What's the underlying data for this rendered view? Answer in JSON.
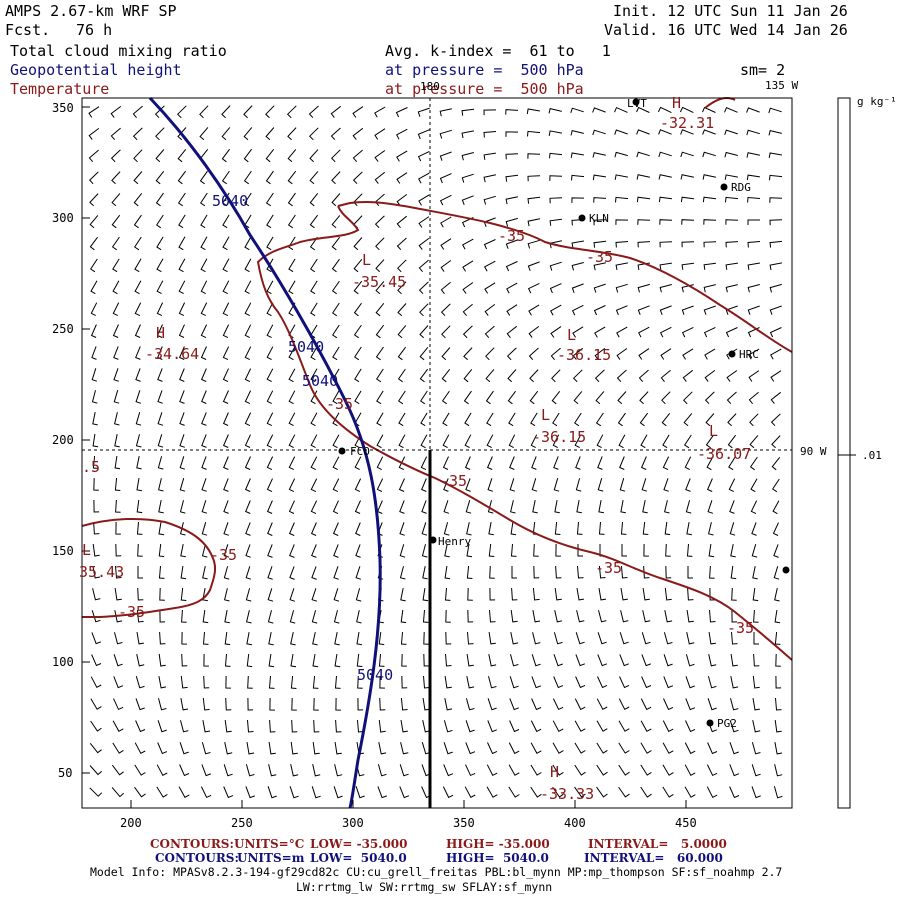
{
  "header": {
    "model": "AMPS 2.67-km WRF SP",
    "fcst_label": "Fcst.",
    "fcst_value": "76 h",
    "init": "Init. 12 UTC Sun 11 Jan 26",
    "valid": "Valid. 16 UTC Wed 14 Jan 26",
    "field_cloud": "Total cloud mixing ratio",
    "field_geo": "Geopotential height",
    "field_temp": "Temperature",
    "avg": "Avg. k-index =  61 to   1",
    "pressure1": "at pressure =  500 hPa",
    "pressure2": "at pressure =  500 hPa",
    "sm": "sm= 2"
  },
  "map": {
    "x_ticks": [
      "200",
      "250",
      "300",
      "350",
      "400",
      "450"
    ],
    "y_ticks": [
      "350",
      "300",
      "250",
      "200",
      "150",
      "100",
      "50"
    ],
    "meridian_top": "180",
    "meridian_135": "135 W",
    "meridian_90": "90 W",
    "colorbar_unit": "g kg⁻¹",
    "colorbar_value": ".01",
    "stations": [
      "LVT",
      "RDG",
      "KLN",
      "HRC",
      "FCO",
      "Henry",
      "PG2"
    ],
    "temp_labels": [
      "-32.31",
      "-35",
      "-35",
      "-35.45",
      "-34.64",
      "-36.15",
      "-35",
      "-36.15",
      "-36.07",
      ".5",
      "-35",
      "-35",
      "35.43",
      "-35",
      "-35",
      "-35",
      "-33.33"
    ],
    "hl_letters": [
      "H",
      "L",
      "H",
      "L",
      "L",
      "L",
      "L",
      "H"
    ],
    "geo_labels": [
      "5040",
      "5040",
      "5040",
      "5040"
    ]
  },
  "footer": {
    "c1_label": "CONTOURS:",
    "c1_units": "UNITS=°C",
    "c1_low": "LOW= -35.000",
    "c1_high": "HIGH= -35.000",
    "c1_int": "INTERVAL=   5.0000",
    "c2_label": "CONTOURS:",
    "c2_units": "UNITS=m",
    "c2_low": "LOW=  5040.0",
    "c2_high": "HIGH=  5040.0",
    "c2_int": "INTERVAL=   60.000",
    "model_info": "Model Info: MPASv8.2.3-194-gf29cd82c CU:cu_grell_freitas PBL:bl_mynn MP:mp_thompson SF:sf_noahmp 2.7",
    "model_info2": "LW:rrtmg_lw SW:rrtmg_sw SFLAY:sf_mynn"
  }
}
